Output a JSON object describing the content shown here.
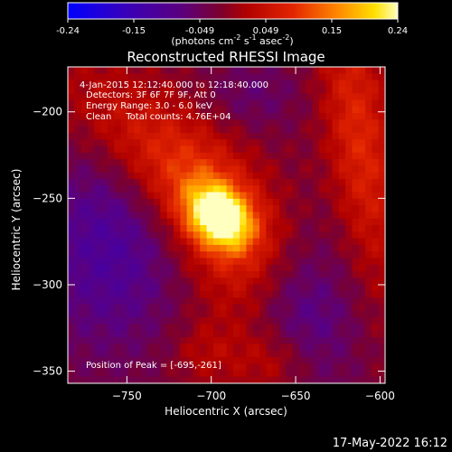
{
  "colorbar": {
    "ticks": [
      "-0.24",
      "-0.15",
      "-0.049",
      "0.049",
      "0.15",
      "0.24"
    ],
    "units_prefix": "(photons cm",
    "units_sup1": "-2",
    "units_mid1": " s",
    "units_sup2": "-1",
    "units_mid2": " asec",
    "units_sup3": "-2",
    "units_suffix": ")",
    "min": -0.24,
    "max": 0.24
  },
  "chart_data": {
    "type": "heatmap",
    "title": "Reconstructed RHESSI Image",
    "xlabel": "Heliocentric X (arcsec)",
    "ylabel": "Heliocentric Y (arcsec)",
    "xlim": [
      -785,
      -597
    ],
    "ylim": [
      -357,
      -174
    ],
    "xticks": [
      -750,
      -700,
      -650,
      -600
    ],
    "yticks": [
      -200,
      -250,
      -300,
      -350
    ],
    "xtick_labels": [
      "−750",
      "−700",
      "−650",
      "−600"
    ],
    "ytick_labels": [
      "−200",
      "−250",
      "−300",
      "−350"
    ],
    "colormap": "heat",
    "value_range": [
      -0.24,
      0.24
    ],
    "peak": {
      "x": -695,
      "y": -261,
      "value": 0.24
    },
    "annotations": {
      "time": "4-Jan-2015 12:12:40.000 to 12:18:40.000",
      "detectors": "Detectors: 3F 6F 7F 9F, Att 0",
      "energy": "Energy Range: 3.0 - 6.0 keV",
      "clean": "Clean     Total counts: 4.76E+04",
      "peak_label": "Position of Peak = [-695,-261]"
    }
  },
  "footer": {
    "timestamp": "17-May-2022 16:12"
  }
}
